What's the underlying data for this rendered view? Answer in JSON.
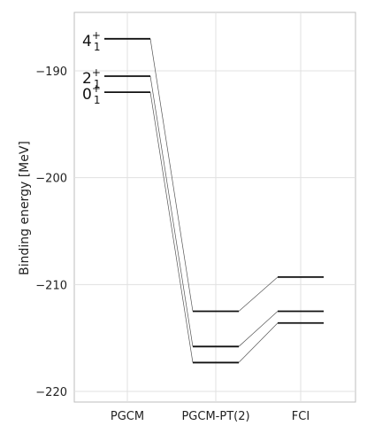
{
  "chart_data": {
    "type": "level-diagram",
    "ylabel": "Binding energy [MeV]",
    "ylim": [
      -221,
      -183
    ],
    "yticks": [
      -190,
      -200,
      -210,
      -220
    ],
    "categories": [
      "PGCM",
      "PGCM-PT(2)",
      "FCI"
    ],
    "grid": true,
    "states": [
      {
        "name": "0",
        "sub": "1",
        "sup": "+",
        "values": [
          -192.0,
          -217.3,
          -213.6
        ]
      },
      {
        "name": "2",
        "sub": "1",
        "sup": "+",
        "values": [
          -190.5,
          -215.8,
          -212.5
        ]
      },
      {
        "name": "4",
        "sub": "1",
        "sup": "+",
        "values": [
          -187.0,
          -212.5,
          -209.3
        ]
      }
    ],
    "colors": {
      "level": "#111111",
      "connector": "#555555",
      "grid": "#e0e0e0",
      "frame": "#bdbdbd"
    }
  }
}
